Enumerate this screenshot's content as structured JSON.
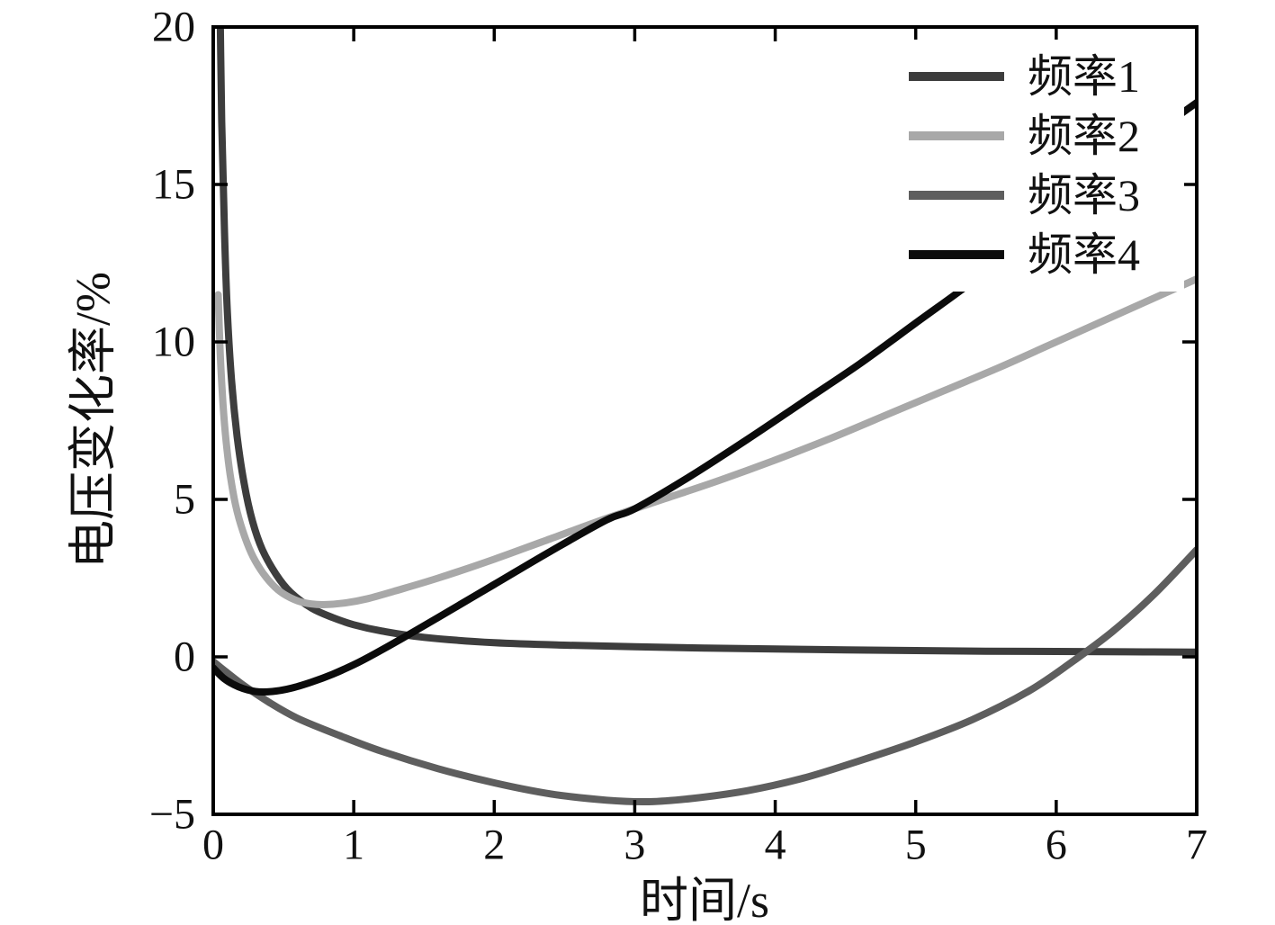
{
  "figure": {
    "background": "#ffffff",
    "text_color": "#111111",
    "axis_color": "#000000"
  },
  "chart_data": {
    "type": "line",
    "title": "",
    "xlabel": "时间/s",
    "ylabel": "电压变化率/%",
    "xlim": [
      0,
      7
    ],
    "ylim": [
      -5,
      20
    ],
    "xticks": [
      0,
      1,
      2,
      3,
      4,
      5,
      6,
      7
    ],
    "xtick_labels": [
      "0",
      "1",
      "2",
      "3",
      "4",
      "5",
      "6",
      "7"
    ],
    "yticks": [
      -5,
      0,
      5,
      10,
      15,
      20
    ],
    "ytick_labels": [
      "−5",
      "0",
      "5",
      "10",
      "15",
      "20"
    ],
    "grid": false,
    "legend": {
      "position": "top-right",
      "entries": [
        "频率1",
        "频率2",
        "频率3",
        "频率4"
      ]
    },
    "series": [
      {
        "name": "频率1",
        "color": "#3d3d3d",
        "points": [
          [
            0.045,
            22
          ],
          [
            0.06,
            17
          ],
          [
            0.08,
            13.5
          ],
          [
            0.1,
            11
          ],
          [
            0.13,
            8.8
          ],
          [
            0.17,
            7.0
          ],
          [
            0.22,
            5.5
          ],
          [
            0.28,
            4.3
          ],
          [
            0.35,
            3.4
          ],
          [
            0.45,
            2.6
          ],
          [
            0.55,
            2.05
          ],
          [
            0.7,
            1.55
          ],
          [
            0.85,
            1.25
          ],
          [
            1.0,
            1.02
          ],
          [
            1.2,
            0.82
          ],
          [
            1.5,
            0.62
          ],
          [
            2.0,
            0.45
          ],
          [
            2.5,
            0.37
          ],
          [
            3.0,
            0.32
          ],
          [
            3.5,
            0.28
          ],
          [
            4.0,
            0.25
          ],
          [
            4.5,
            0.22
          ],
          [
            5.0,
            0.2
          ],
          [
            5.5,
            0.18
          ],
          [
            6.0,
            0.17
          ],
          [
            6.5,
            0.16
          ],
          [
            7.0,
            0.15
          ]
        ]
      },
      {
        "name": "频率2",
        "color": "#a8a8a8",
        "points": [
          [
            0.035,
            11.5
          ],
          [
            0.05,
            9.6
          ],
          [
            0.07,
            8.0
          ],
          [
            0.09,
            6.9
          ],
          [
            0.12,
            5.8
          ],
          [
            0.16,
            4.8
          ],
          [
            0.21,
            4.0
          ],
          [
            0.27,
            3.3
          ],
          [
            0.34,
            2.75
          ],
          [
            0.42,
            2.3
          ],
          [
            0.5,
            2.0
          ],
          [
            0.6,
            1.78
          ],
          [
            0.7,
            1.68
          ],
          [
            0.8,
            1.66
          ],
          [
            0.95,
            1.72
          ],
          [
            1.1,
            1.85
          ],
          [
            1.3,
            2.1
          ],
          [
            1.6,
            2.5
          ],
          [
            2.0,
            3.1
          ],
          [
            2.4,
            3.75
          ],
          [
            2.8,
            4.4
          ],
          [
            3.2,
            5.0
          ],
          [
            3.6,
            5.6
          ],
          [
            4.0,
            6.25
          ],
          [
            4.4,
            6.95
          ],
          [
            4.8,
            7.7
          ],
          [
            5.2,
            8.45
          ],
          [
            5.6,
            9.2
          ],
          [
            6.0,
            10.0
          ],
          [
            6.4,
            10.8
          ],
          [
            6.7,
            11.4
          ],
          [
            7.0,
            12.0
          ]
        ]
      },
      {
        "name": "频率3",
        "color": "#5e5e5e",
        "points": [
          [
            0,
            -0.15
          ],
          [
            0.2,
            -0.85
          ],
          [
            0.4,
            -1.45
          ],
          [
            0.6,
            -1.95
          ],
          [
            0.9,
            -2.5
          ],
          [
            1.2,
            -3.0
          ],
          [
            1.6,
            -3.55
          ],
          [
            2.0,
            -4.0
          ],
          [
            2.4,
            -4.35
          ],
          [
            2.8,
            -4.55
          ],
          [
            3.1,
            -4.6
          ],
          [
            3.4,
            -4.5
          ],
          [
            3.8,
            -4.25
          ],
          [
            4.2,
            -3.85
          ],
          [
            4.6,
            -3.3
          ],
          [
            5.0,
            -2.7
          ],
          [
            5.4,
            -2.0
          ],
          [
            5.8,
            -1.1
          ],
          [
            6.1,
            -0.2
          ],
          [
            6.4,
            0.8
          ],
          [
            6.7,
            2.0
          ],
          [
            7.0,
            3.4
          ]
        ]
      },
      {
        "name": "频率4",
        "color": "#0b0b0b",
        "points": [
          [
            0,
            -0.35
          ],
          [
            0.08,
            -0.7
          ],
          [
            0.18,
            -0.95
          ],
          [
            0.3,
            -1.1
          ],
          [
            0.42,
            -1.1
          ],
          [
            0.55,
            -1.0
          ],
          [
            0.7,
            -0.8
          ],
          [
            0.85,
            -0.55
          ],
          [
            1.0,
            -0.25
          ],
          [
            1.15,
            0.1
          ],
          [
            1.35,
            0.6
          ],
          [
            1.6,
            1.25
          ],
          [
            2.0,
            2.3
          ],
          [
            2.4,
            3.35
          ],
          [
            2.8,
            4.35
          ],
          [
            3.0,
            4.7
          ],
          [
            3.4,
            5.75
          ],
          [
            3.8,
            6.9
          ],
          [
            4.2,
            8.1
          ],
          [
            4.6,
            9.3
          ],
          [
            5.0,
            10.6
          ],
          [
            5.4,
            11.9
          ],
          [
            5.8,
            13.3
          ],
          [
            6.2,
            14.8
          ],
          [
            6.6,
            16.3
          ],
          [
            7.0,
            17.6
          ]
        ]
      }
    ]
  }
}
